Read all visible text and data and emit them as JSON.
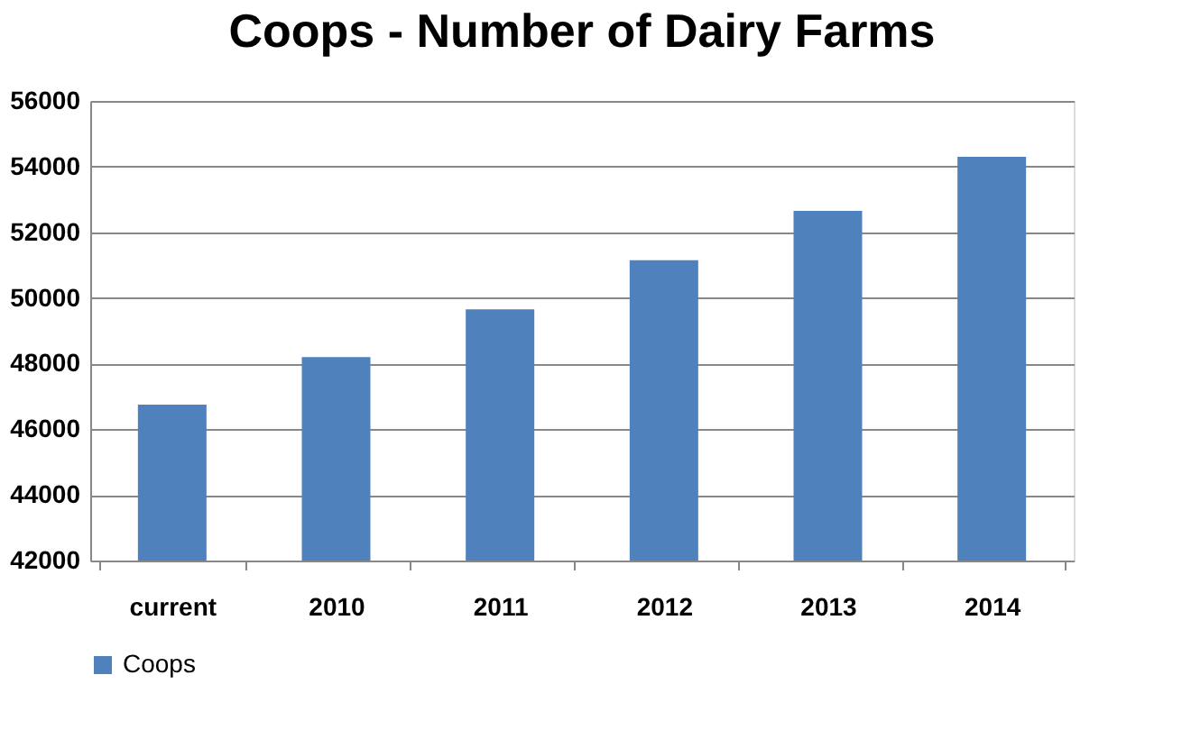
{
  "chart_data": {
    "type": "bar",
    "title": "Coops - Number of Dairy Farms",
    "categories": [
      "current",
      "2010",
      "2011",
      "2012",
      "2013",
      "2014"
    ],
    "series": [
      {
        "name": "Coops",
        "color": "#4f81bd",
        "values": [
          46750,
          48200,
          49650,
          51150,
          52650,
          54300
        ]
      }
    ],
    "ylim": [
      42000,
      56000
    ],
    "yticks": [
      42000,
      44000,
      46000,
      48000,
      50000,
      52000,
      54000,
      56000
    ],
    "grid": "y",
    "legend": "bottom"
  }
}
